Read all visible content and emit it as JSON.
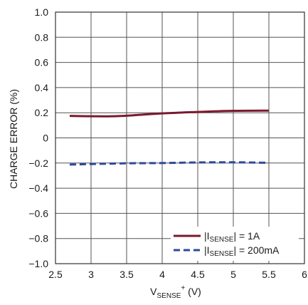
{
  "chart_data": {
    "type": "line",
    "title": "",
    "xlabel": {
      "main": "V",
      "sub": "SENSE",
      "sup": "+",
      "tail": " (V)"
    },
    "ylabel": "CHARGE ERROR (%)",
    "xlim": [
      2.5,
      6
    ],
    "ylim": [
      -1.0,
      1.0
    ],
    "xticks": [
      2.5,
      3,
      3.5,
      4,
      4.5,
      5,
      5.5,
      6
    ],
    "xtick_labels": [
      "2.5",
      "3",
      "3.5",
      "4",
      "4.5",
      "5",
      "5.5",
      "6"
    ],
    "yticks": [
      -1.0,
      -0.8,
      -0.6,
      -0.4,
      -0.2,
      0,
      0.2,
      0.4,
      0.6,
      0.8,
      1.0
    ],
    "ytick_labels": [
      "−1.0",
      "−0.8",
      "−0.6",
      "−0.4",
      "−0.2",
      "0",
      "0.2",
      "0.4",
      "0.6",
      "0.8",
      "1.0"
    ],
    "grid": true,
    "legend_position": "bottom-right",
    "series": [
      {
        "legend": {
          "pre": "|I",
          "sub": "SENSE",
          "post": "| = 1A"
        },
        "color": "#7a1a2e",
        "style": "solid",
        "x": [
          2.7,
          3.0,
          3.3,
          3.6,
          4.0,
          4.5,
          5.0,
          5.5
        ],
        "y": [
          0.175,
          0.172,
          0.172,
          0.18,
          0.195,
          0.206,
          0.215,
          0.217
        ]
      },
      {
        "legend": {
          "pre": "|I",
          "sub": "SENSE",
          "post": "| = 200mA"
        },
        "color": "#2e4a9c",
        "style": "dashed",
        "x": [
          2.7,
          3.0,
          3.5,
          4.0,
          4.5,
          5.0,
          5.5
        ],
        "y": [
          -0.212,
          -0.208,
          -0.202,
          -0.2,
          -0.195,
          -0.194,
          -0.198
        ]
      }
    ]
  }
}
